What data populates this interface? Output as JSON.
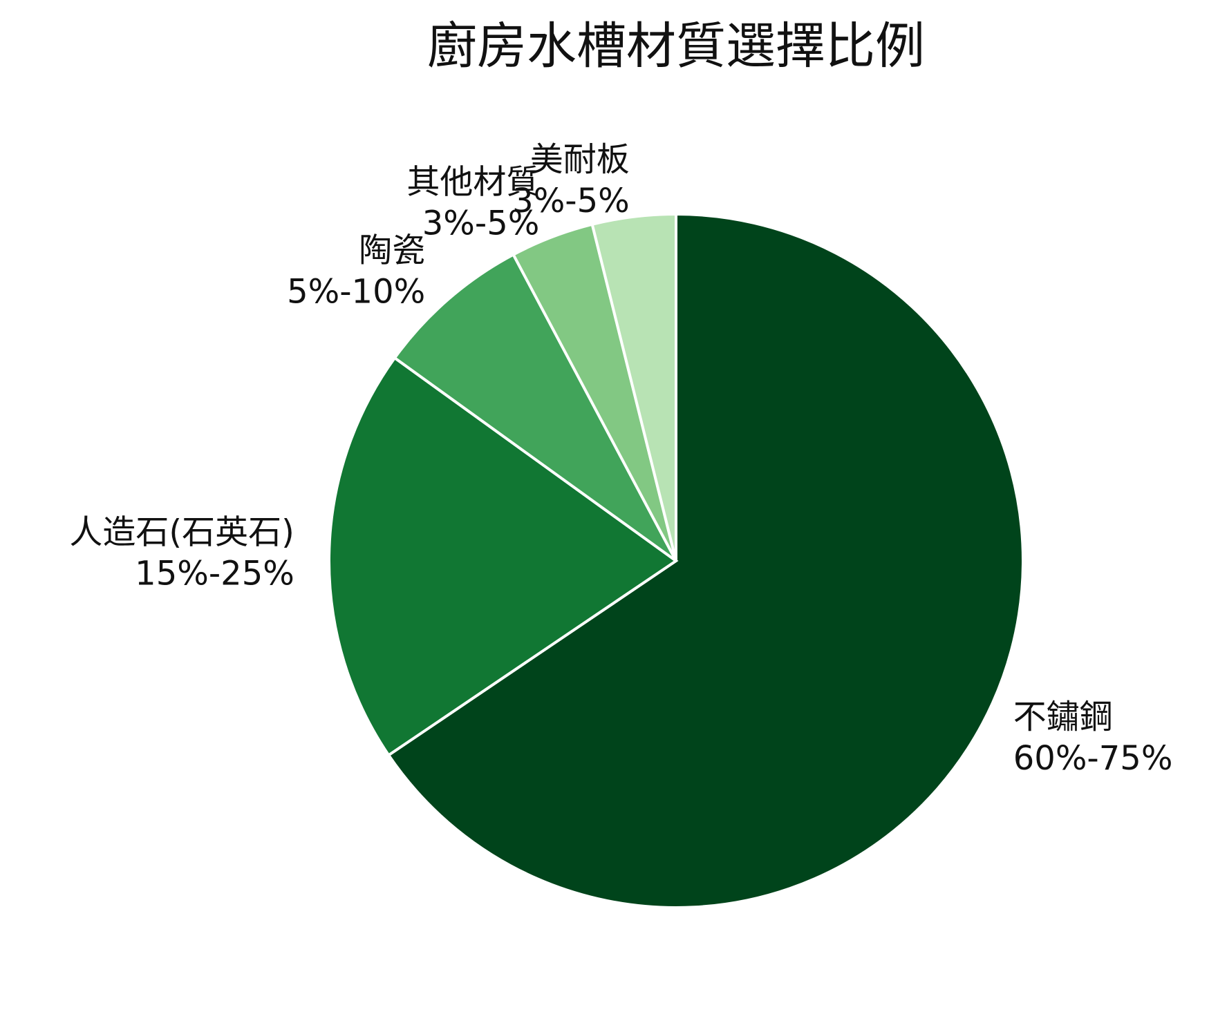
{
  "chart_data": {
    "type": "pie",
    "title": "廚房水槽材質選擇比例",
    "categories": [
      "不鏽鋼",
      "人造石(石英石)",
      "陶瓷",
      "其他材質",
      "美耐板"
    ],
    "values": [
      67.5,
      20,
      7.5,
      4,
      4
    ],
    "value_labels": [
      "60%-75%",
      "15%-25%",
      "5%-10%",
      "3%-5%",
      "3%-5%"
    ],
    "colors": [
      "#00441b",
      "#117733",
      "#41a45a",
      "#82c883",
      "#b8e3b4"
    ],
    "start_angle": 0,
    "direction": "clockwise"
  }
}
